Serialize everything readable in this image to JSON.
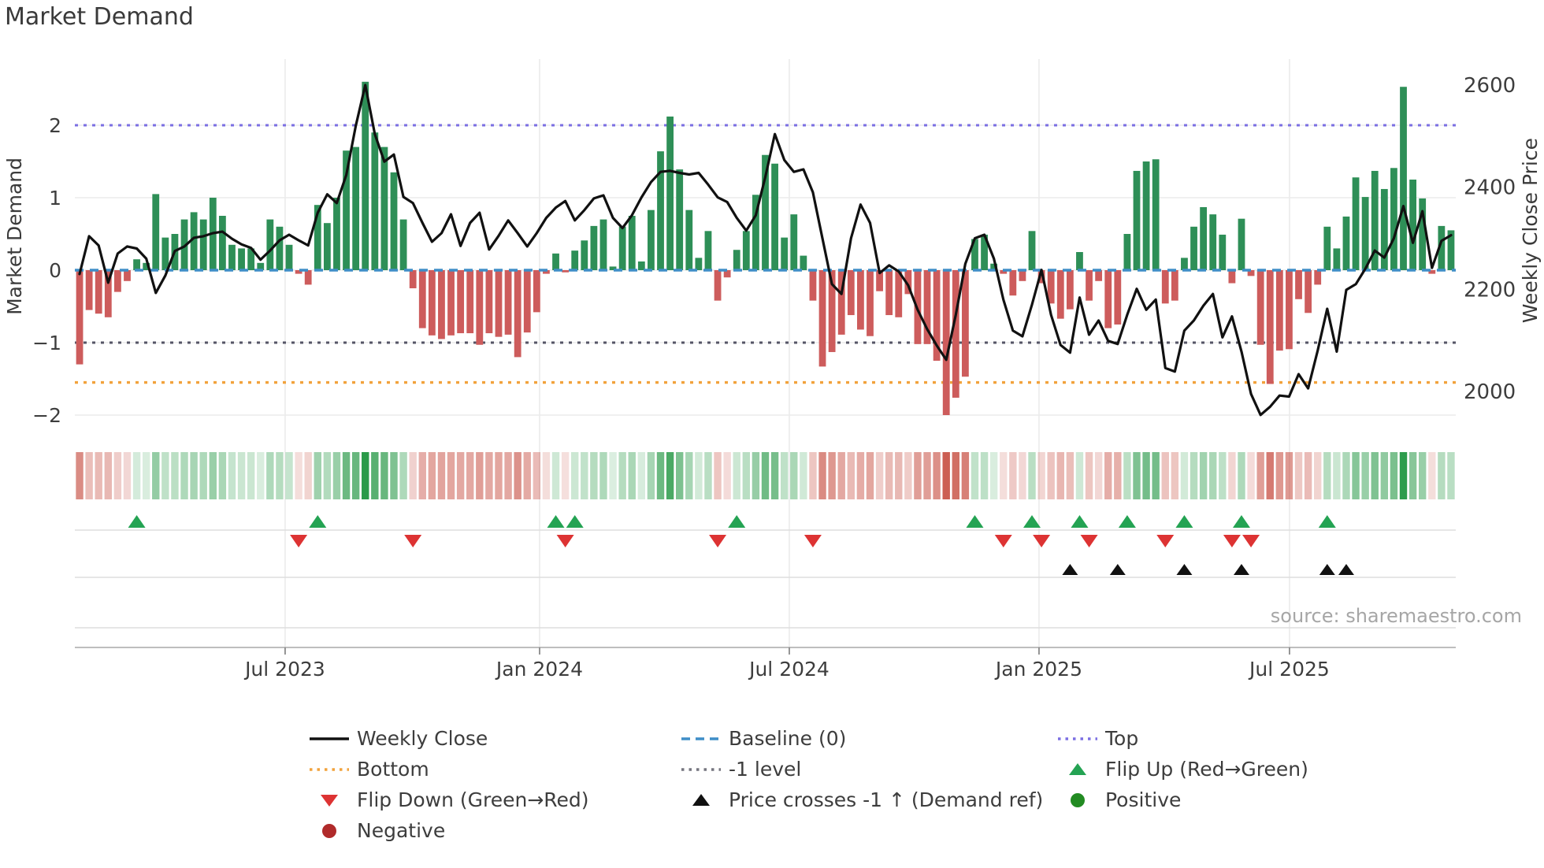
{
  "title": "Market Demand",
  "source": "source: sharemaestro.com",
  "colors": {
    "bar_positive": "#2e8f57",
    "bar_negative": "#cd5c5c",
    "price_line": "#111111",
    "baseline": "#3f8ec7",
    "top_line": "#7b6fe3",
    "minus_one_line": "#555566",
    "bottom_line": "#f2a23c",
    "flip_up": "#24a353",
    "flip_down": "#dd3333",
    "price_cross": "#111111",
    "positive_dot": "#228b22",
    "negative_dot": "#b02a2a",
    "heat_green": "#2a9a49",
    "heat_red": "#c0392b",
    "grid": "#ebebeb",
    "panel_spine": "#b5b5b5",
    "tick_mark": "#8a8a8a",
    "axis_text": "#3d3d3d"
  },
  "left_axis": {
    "label": "Market Demand",
    "ticks": [
      {
        "value": 2,
        "label": "2"
      },
      {
        "value": 1,
        "label": "1"
      },
      {
        "value": 0,
        "label": "0"
      },
      {
        "value": -1,
        "label": "−1"
      },
      {
        "value": -2,
        "label": "−2"
      }
    ]
  },
  "right_axis": {
    "label": "Weekly Close Price",
    "ticks": [
      {
        "value": 2600,
        "label": "2600"
      },
      {
        "value": 2400,
        "label": "2400"
      },
      {
        "value": 2200,
        "label": "2200"
      },
      {
        "value": 2000,
        "label": "2000"
      }
    ]
  },
  "chart_data": {
    "type": "bar+line",
    "title": "Market Demand",
    "weeks": 145,
    "x_ticks": [
      {
        "label": "Jul 2023",
        "pos": 21.58
      },
      {
        "label": "Jan 2024",
        "pos": 48.3
      },
      {
        "label": "Jul 2024",
        "pos": 74.52
      },
      {
        "label": "Jan 2025",
        "pos": 100.74
      },
      {
        "label": "Jul 2025",
        "pos": 127.04
      }
    ],
    "left_axis_range": [
      -2.35,
      2.92
    ],
    "right_axis_range": [
      1945,
      2625
    ],
    "reference_lines": {
      "top": 2.0,
      "baseline": 0.0,
      "minus_one": -1.0,
      "bottom": -1.55
    },
    "series": [
      {
        "name": "Market Demand",
        "type": "bar",
        "axis": "left",
        "values": [
          -1.3,
          -0.55,
          -0.6,
          -0.65,
          -0.3,
          -0.15,
          0.15,
          0.1,
          1.05,
          0.45,
          0.5,
          0.7,
          0.8,
          0.7,
          1.0,
          0.75,
          0.35,
          0.3,
          0.3,
          0.1,
          0.7,
          0.6,
          0.35,
          -0.05,
          -0.2,
          0.9,
          0.65,
          1.0,
          1.65,
          1.7,
          2.6,
          1.9,
          1.7,
          1.35,
          0.7,
          -0.25,
          -0.8,
          -0.9,
          -0.95,
          -0.9,
          -0.87,
          -0.87,
          -1.03,
          -0.87,
          -0.92,
          -0.89,
          -1.2,
          -0.86,
          -0.58,
          -0.05,
          0.23,
          -0.03,
          0.27,
          0.41,
          0.61,
          0.7,
          0.05,
          0.6,
          0.75,
          0.12,
          0.83,
          1.64,
          2.12,
          1.39,
          0.83,
          0.17,
          0.54,
          -0.42,
          -0.1,
          0.28,
          0.54,
          1.04,
          1.59,
          1.47,
          0.45,
          0.77,
          0.2,
          -0.42,
          -1.33,
          -1.13,
          -0.89,
          -0.62,
          -0.82,
          -0.91,
          -0.29,
          -0.62,
          -0.65,
          -0.33,
          -1.02,
          -1.02,
          -1.25,
          -2.0,
          -1.76,
          -1.47,
          0.43,
          0.49,
          0.09,
          -0.05,
          -0.35,
          -0.15,
          0.54,
          -0.18,
          -0.46,
          -0.67,
          -0.54,
          0.25,
          -0.42,
          -0.15,
          -0.8,
          -0.75,
          0.5,
          1.37,
          1.5,
          1.53,
          -0.46,
          -0.42,
          0.17,
          0.6,
          0.87,
          0.77,
          0.49,
          -0.18,
          0.71,
          -0.08,
          -1.03,
          -1.57,
          -1.11,
          -1.09,
          -0.4,
          -0.59,
          -0.2,
          0.6,
          0.3,
          0.74,
          1.28,
          1.01,
          1.37,
          1.12,
          1.41,
          2.53,
          1.25,
          0.99,
          -0.05,
          0.61,
          0.55
        ]
      },
      {
        "name": "Weekly Close",
        "type": "line",
        "axis": "right",
        "values": [
          2230,
          2304,
          2286,
          2213,
          2270,
          2284,
          2280,
          2260,
          2193,
          2227,
          2275,
          2284,
          2301,
          2304,
          2310,
          2313,
          2299,
          2288,
          2281,
          2258,
          2276,
          2296,
          2307,
          2296,
          2286,
          2350,
          2386,
          2369,
          2424,
          2520,
          2600,
          2504,
          2450,
          2464,
          2381,
          2369,
          2330,
          2293,
          2310,
          2347,
          2285,
          2330,
          2350,
          2278,
          2305,
          2335,
          2310,
          2284,
          2310,
          2340,
          2360,
          2373,
          2335,
          2355,
          2378,
          2384,
          2340,
          2320,
          2345,
          2380,
          2410,
          2430,
          2432,
          2428,
          2425,
          2428,
          2405,
          2380,
          2371,
          2340,
          2315,
          2345,
          2420,
          2504,
          2453,
          2430,
          2435,
          2390,
          2300,
          2210,
          2191,
          2300,
          2366,
          2330,
          2232,
          2247,
          2235,
          2208,
          2160,
          2122,
          2090,
          2062,
          2150,
          2250,
          2300,
          2307,
          2260,
          2180,
          2119,
          2108,
          2170,
          2238,
          2150,
          2091,
          2076,
          2184,
          2111,
          2139,
          2099,
          2093,
          2150,
          2201,
          2160,
          2180,
          2046,
          2039,
          2119,
          2139,
          2168,
          2191,
          2106,
          2147,
          2078,
          1995,
          1954,
          1970,
          1992,
          1990,
          2034,
          2006,
          2080,
          2162,
          2078,
          2199,
          2210,
          2240,
          2276,
          2262,
          2300,
          2363,
          2291,
          2353,
          2242,
          2295,
          2306
        ]
      }
    ],
    "markers": {
      "flip_up": [
        6,
        25,
        50,
        52,
        69,
        94,
        100,
        105,
        110,
        116,
        122,
        131
      ],
      "flip_down": [
        23,
        35,
        51,
        67,
        77,
        97,
        101,
        106,
        114,
        121,
        123
      ],
      "price_cross": [
        104,
        109,
        116,
        122,
        131,
        133
      ]
    },
    "heatmap": {
      "source_series": "Market Demand",
      "description": "one tile per week, red negative / green positive, intensity by magnitude"
    },
    "legend_position": "bottom",
    "grid": true
  },
  "legend": {
    "columns": [
      [
        {
          "icon": "solid-line",
          "color": "#111111",
          "label": "Weekly Close"
        },
        {
          "icon": "dotted-line",
          "color": "#f2a23c",
          "label": "Bottom"
        },
        {
          "icon": "triangle-down",
          "color": "#dd3333",
          "label": "Flip Down (Green→Red)"
        },
        {
          "icon": "circle",
          "color": "#b02a2a",
          "label": "Negative"
        }
      ],
      [
        {
          "icon": "dashed-line",
          "color": "#3f8ec7",
          "label": "Baseline (0)"
        },
        {
          "icon": "dotted-line",
          "color": "#75757f",
          "label": "-1 level"
        },
        {
          "icon": "triangle-up",
          "color": "#111111",
          "label": "Price crosses -1 ↑ (Demand ref)"
        }
      ],
      [
        {
          "icon": "dotted-line",
          "color": "#7b6fe3",
          "label": "Top"
        },
        {
          "icon": "triangle-up",
          "color": "#24a353",
          "label": "Flip Up (Red→Green)"
        },
        {
          "icon": "circle",
          "color": "#228b22",
          "label": "Positive"
        }
      ]
    ]
  }
}
